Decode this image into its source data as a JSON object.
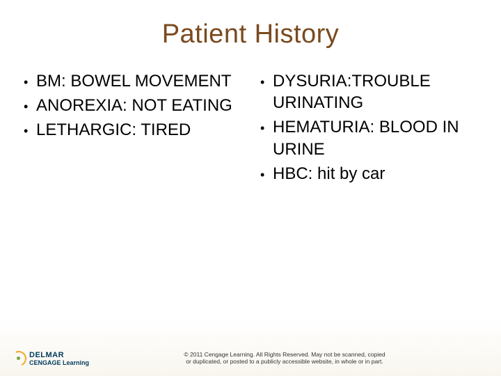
{
  "title": "Patient History",
  "title_color": "#7a4a1e",
  "title_fontsize": 38,
  "bullet_fontsize": 24,
  "text_color": "#000000",
  "background_color": "#ffffff",
  "left_column": [
    "BM: BOWEL MOVEMENT",
    "ANOREXIA: NOT EATING",
    "LETHARGIC: TIRED"
  ],
  "right_column": [
    "DYSURIA:TROUBLE URINATING",
    "HEMATURIA: BLOOD IN URINE",
    "HBC: hit by car"
  ],
  "logo": {
    "brand_top": "DELMAR",
    "brand_bottom": "CENGAGE Learning",
    "brand_color": "#003a5d",
    "swoosh_color": "#f5a623",
    "dot_color": "#7aa843"
  },
  "copyright_line1": "© 2011 Cengage Learning. All Rights Reserved. May not be scanned, copied",
  "copyright_line2": "or duplicated, or posted to a publicly accessible website, in whole or in part."
}
